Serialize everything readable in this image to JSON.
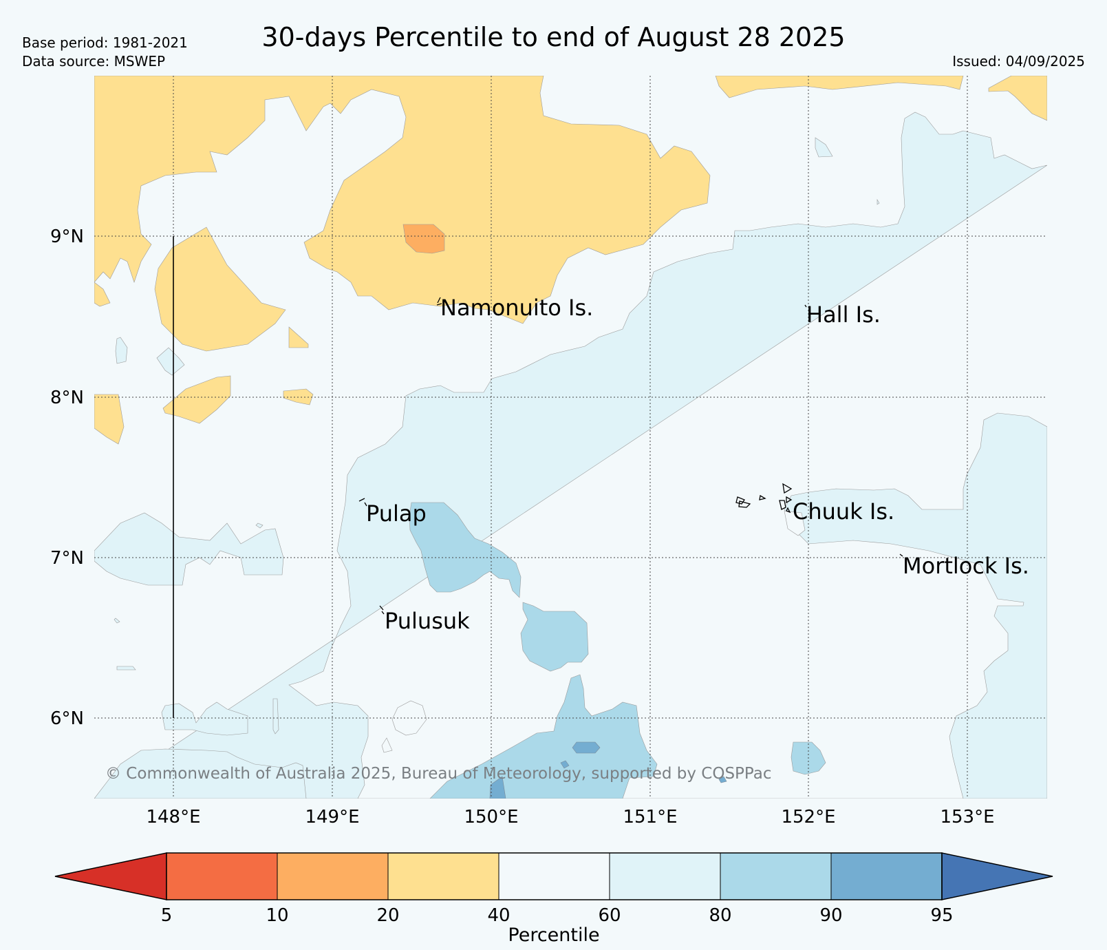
{
  "header": {
    "base_period": "Base period: 1981-2021",
    "data_source": "Data source: MSWEP",
    "title": "30-days Percentile to end of August 28 2025",
    "issued": "Issued: 04/09/2025"
  },
  "map": {
    "lat_labels": [
      "9°N",
      "8°N",
      "7°N",
      "6°N"
    ],
    "lon_labels": [
      "148°E",
      "149°E",
      "150°E",
      "151°E",
      "152°E",
      "153°E"
    ],
    "places": [
      {
        "key": "namonuito",
        "name": "Namonuito Is."
      },
      {
        "key": "hall",
        "name": "Hall Is."
      },
      {
        "key": "pulap",
        "name": "Pulap"
      },
      {
        "key": "chuuk",
        "name": "Chuuk Is."
      },
      {
        "key": "mortlock",
        "name": "Mortlock Is."
      },
      {
        "key": "pulusuk",
        "name": "Pulusuk"
      }
    ],
    "copyright": "© Commonwealth of Australia 2025, Bureau of Meteorology, supported by COSPPac"
  },
  "colorbar": {
    "label": "Percentile",
    "ticks": [
      "5",
      "10",
      "20",
      "40",
      "60",
      "80",
      "90",
      "95"
    ],
    "colors": [
      "#d73027",
      "#f46d43",
      "#fdae61",
      "#fee090",
      "#f3f9fb",
      "#e0f3f8",
      "#abd9e9",
      "#74add1",
      "#4575b4"
    ]
  },
  "colors": {
    "background": "#f3f9fb",
    "dry_20_40": "#fee090",
    "dry_10_20": "#fdae61",
    "wet_60_80": "#e0f3f8",
    "wet_80_90": "#abd9e9",
    "wet_90_95": "#74add1"
  }
}
